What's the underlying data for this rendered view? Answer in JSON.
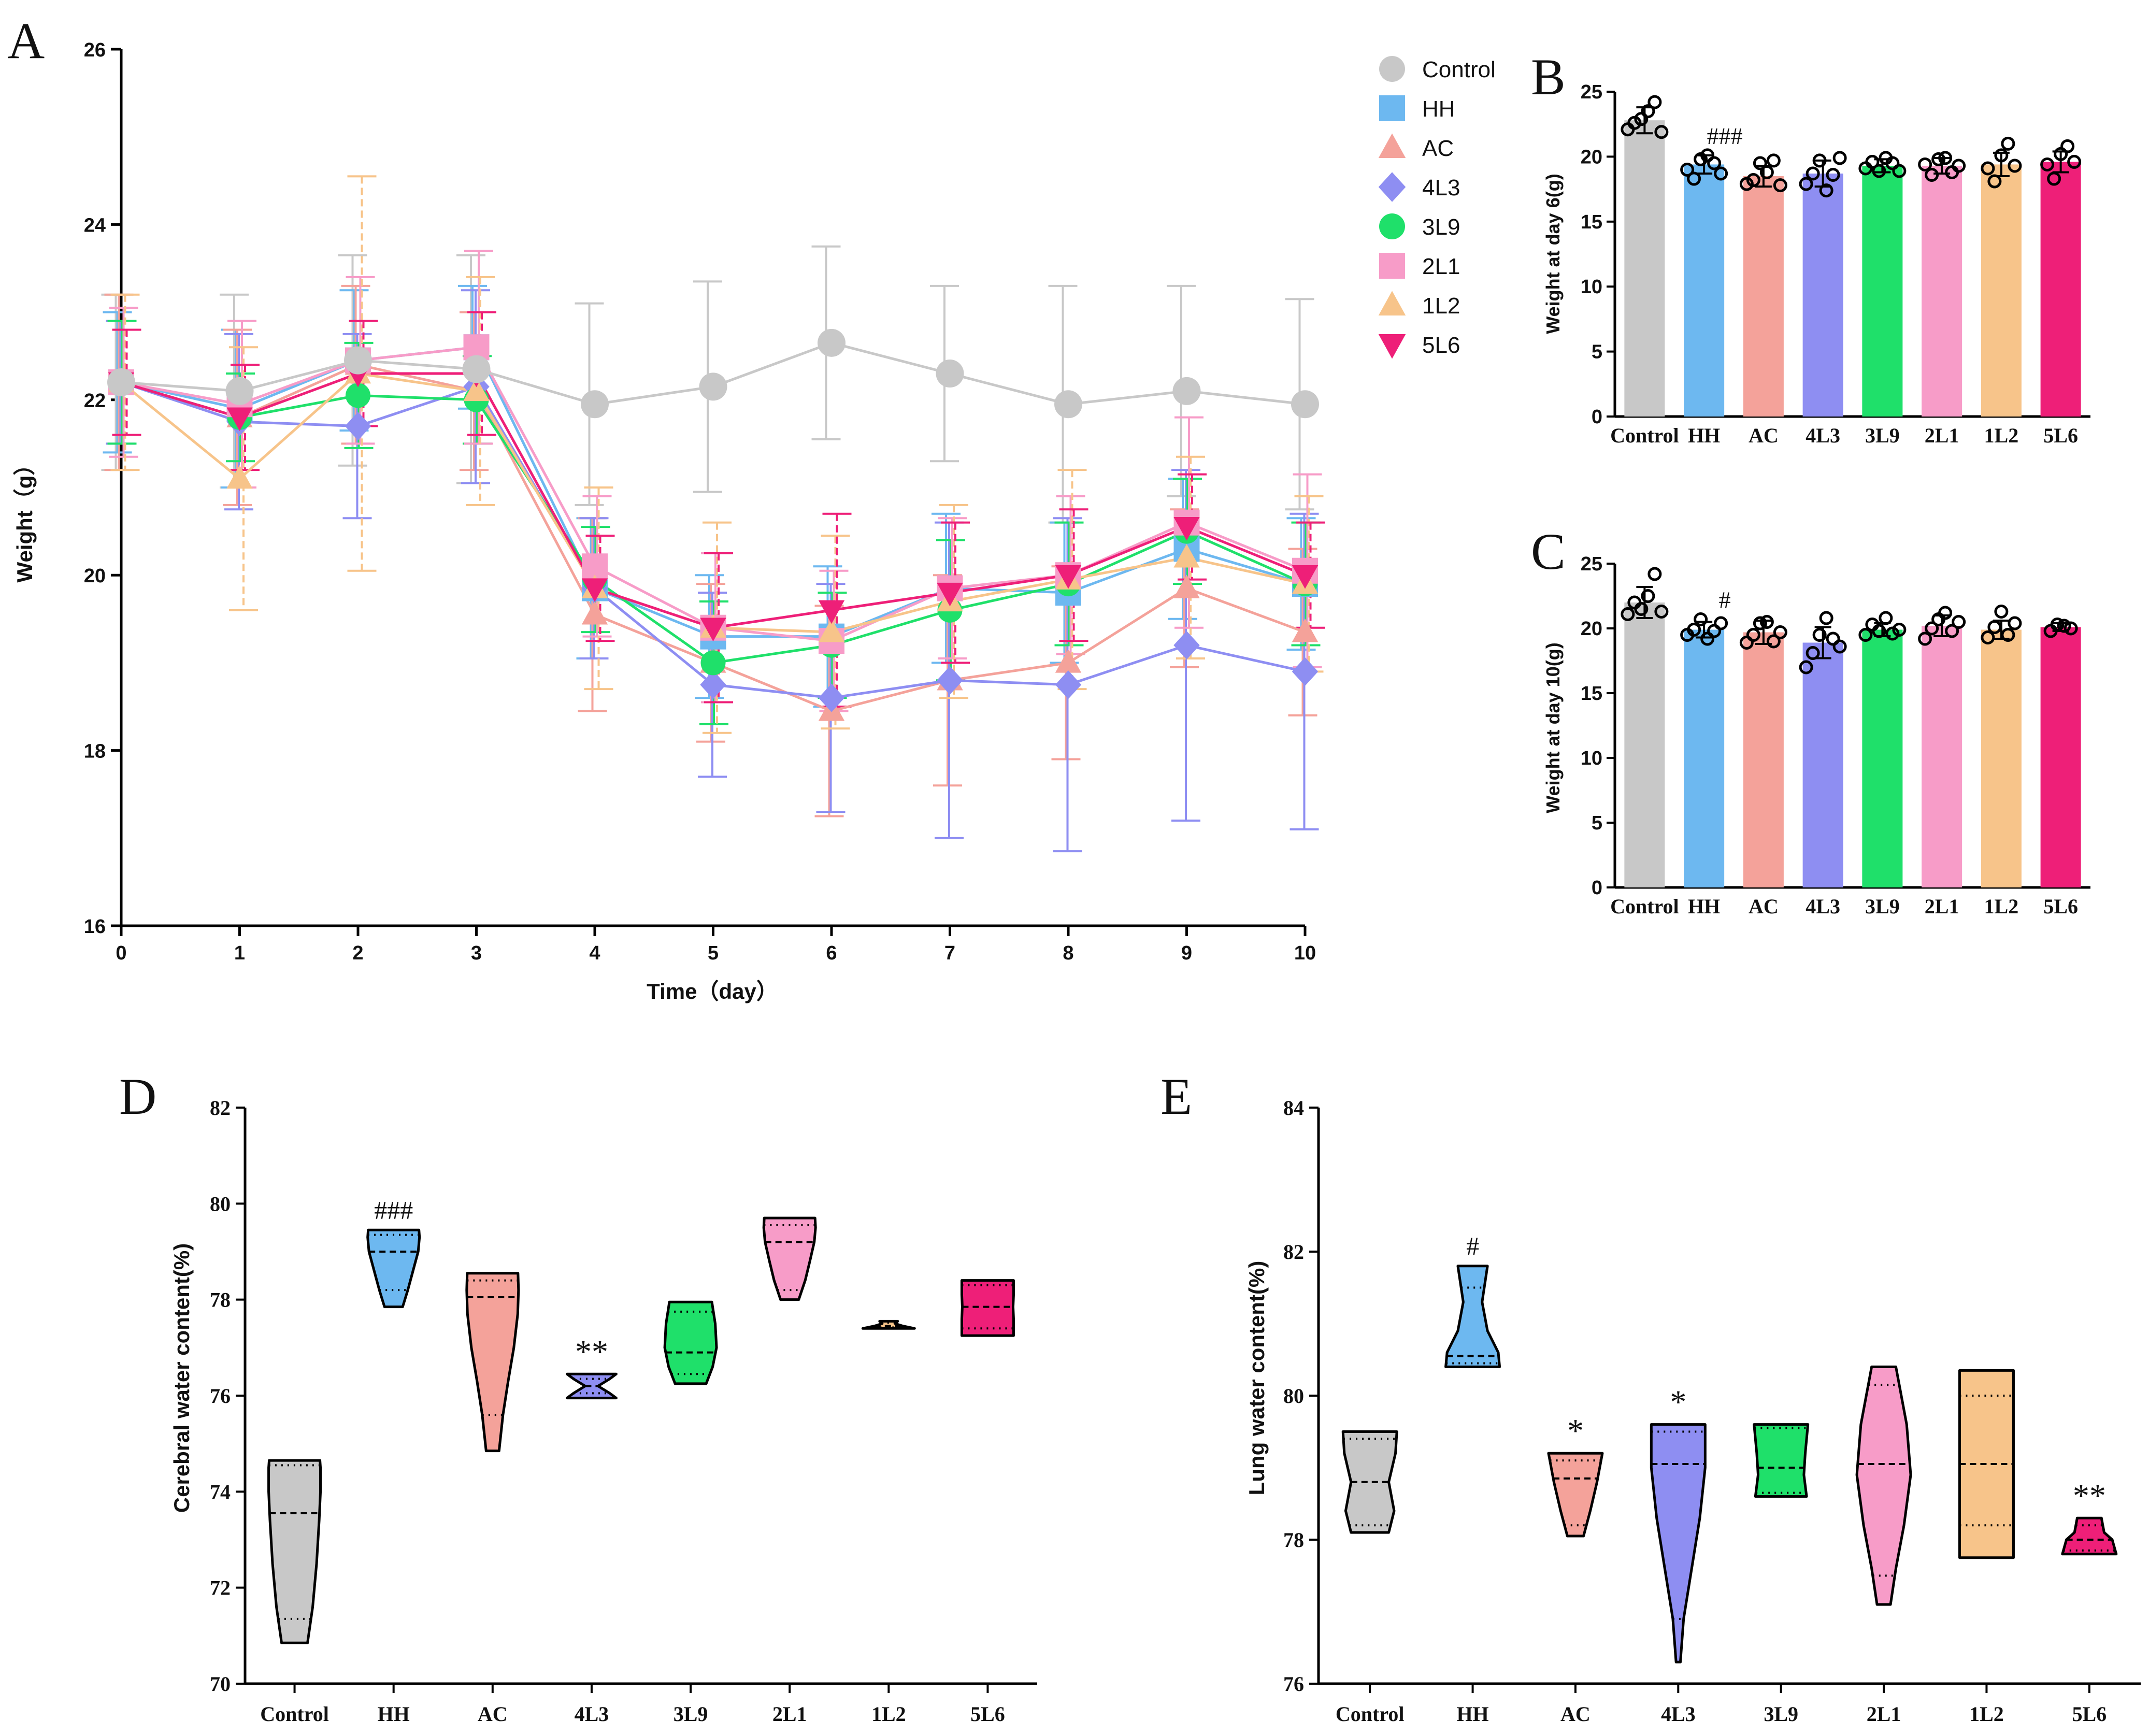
{
  "groups": [
    "Control",
    "HH",
    "AC",
    "4L3",
    "3L9",
    "2L1",
    "1L2",
    "5L6"
  ],
  "colors": {
    "Control": "#c8c8c8",
    "HH": "#6db8f0",
    "AC": "#f4a29a",
    "4L3": "#8e8ef2",
    "3L9": "#1fe06a",
    "2L1": "#f79cc8",
    "1L2": "#f7c48a",
    "5L6": "#ee1f78"
  },
  "panels": {
    "A": {
      "letter": "A"
    },
    "B": {
      "letter": "B"
    },
    "C": {
      "letter": "C"
    },
    "D": {
      "letter": "D"
    },
    "E": {
      "letter": "E"
    }
  },
  "chart_data": [
    {
      "id": "A",
      "type": "line",
      "xlabel": "Time（day）",
      "ylabel": "Weight（g）",
      "xlim": [
        0,
        10
      ],
      "ylim": [
        16,
        26
      ],
      "xticks": [
        "0",
        "1",
        "2",
        "3",
        "4",
        "5",
        "6",
        "7",
        "8",
        "9",
        "10"
      ],
      "yticks": [
        "16",
        "18",
        "20",
        "22",
        "24",
        "26"
      ],
      "x": [
        0,
        1,
        2,
        3,
        4,
        5,
        6,
        7,
        8,
        9,
        10
      ],
      "legend_position": "top-right",
      "series": [
        {
          "name": "Control",
          "marker": "circle",
          "values": [
            22.2,
            22.1,
            22.45,
            22.35,
            21.95,
            22.15,
            22.65,
            22.3,
            21.95,
            22.1,
            21.95
          ],
          "err": [
            1.0,
            1.1,
            1.2,
            1.3,
            1.15,
            1.2,
            1.1,
            1.0,
            1.35,
            1.2,
            1.2
          ]
        },
        {
          "name": "HH",
          "marker": "square",
          "values": [
            22.2,
            21.9,
            22.45,
            22.6,
            19.85,
            19.3,
            19.3,
            19.85,
            19.8,
            20.3,
            19.9
          ],
          "err": [
            0.8,
            0.9,
            0.8,
            0.7,
            0.8,
            0.7,
            0.8,
            0.85,
            0.8,
            0.8,
            0.75
          ]
        },
        {
          "name": "AC",
          "marker": "triangle",
          "values": [
            22.2,
            21.8,
            22.4,
            22.1,
            19.55,
            19.0,
            18.45,
            18.8,
            19.0,
            19.85,
            19.35
          ],
          "err": [
            1.0,
            1.0,
            0.9,
            0.9,
            1.1,
            0.9,
            1.2,
            1.2,
            1.1,
            0.9,
            0.95
          ]
        },
        {
          "name": "4L3",
          "marker": "diamond",
          "values": [
            22.2,
            21.75,
            21.7,
            22.15,
            19.85,
            18.75,
            18.6,
            18.8,
            18.75,
            19.2,
            18.9
          ],
          "err": [
            0.7,
            1.0,
            1.05,
            1.1,
            0.8,
            1.05,
            1.3,
            1.8,
            1.9,
            2.0,
            1.8
          ]
        },
        {
          "name": "3L9",
          "marker": "circle",
          "values": [
            22.2,
            21.8,
            22.05,
            22.0,
            19.95,
            19.0,
            19.2,
            19.6,
            19.9,
            20.5,
            19.9
          ],
          "err": [
            0.7,
            0.5,
            0.6,
            0.5,
            0.6,
            0.7,
            0.6,
            0.8,
            0.7,
            0.6,
            0.7
          ]
        },
        {
          "name": "2L1",
          "marker": "square",
          "values": [
            22.2,
            21.95,
            22.45,
            22.6,
            20.1,
            19.4,
            19.25,
            19.85,
            20.0,
            20.6,
            20.05
          ],
          "err": [
            0.85,
            0.95,
            0.95,
            1.1,
            0.8,
            0.85,
            0.8,
            0.8,
            0.9,
            1.2,
            1.1
          ]
        },
        {
          "name": "1L2",
          "marker": "triangle",
          "values": [
            22.2,
            21.1,
            22.3,
            22.1,
            19.85,
            19.4,
            19.35,
            19.7,
            19.95,
            20.2,
            19.9
          ],
          "err": [
            1.0,
            1.5,
            2.25,
            1.3,
            1.15,
            1.2,
            1.1,
            1.1,
            1.25,
            1.15,
            1.0
          ]
        },
        {
          "name": "5L6",
          "marker": "triangle-down",
          "values": [
            22.2,
            21.8,
            22.3,
            22.3,
            19.85,
            19.4,
            19.6,
            19.8,
            20.0,
            20.55,
            20.0
          ],
          "err": [
            0.6,
            0.6,
            0.6,
            0.7,
            0.6,
            0.85,
            1.1,
            0.8,
            0.75,
            0.6,
            0.6
          ]
        }
      ]
    },
    {
      "id": "B",
      "type": "bar",
      "ylabel": "Weight at day 6(g)",
      "ylim": [
        0,
        25
      ],
      "yticks": [
        "0",
        "5",
        "10",
        "15",
        "20",
        "25"
      ],
      "categories": [
        "Control",
        "HH",
        "AC",
        "4L3",
        "3L9",
        "2L1",
        "1L2",
        "5L6"
      ],
      "values": [
        22.8,
        19.4,
        18.5,
        18.7,
        19.3,
        19.3,
        19.4,
        19.6
      ],
      "err": [
        1.0,
        0.7,
        0.8,
        1.0,
        0.5,
        0.6,
        0.9,
        0.8
      ],
      "points": [
        [
          22.1,
          22.6,
          22.9,
          23.5,
          24.2,
          21.9
        ],
        [
          19.0,
          18.3,
          19.8,
          20.1,
          19.5,
          18.7
        ],
        [
          17.9,
          18.2,
          19.5,
          18.8,
          19.7,
          17.8
        ],
        [
          17.9,
          18.7,
          19.7,
          17.4,
          18.6,
          19.9
        ],
        [
          19.1,
          19.6,
          18.9,
          19.9,
          19.5,
          18.9
        ],
        [
          19.4,
          18.6,
          19.8,
          19.9,
          18.8,
          19.3
        ],
        [
          19.1,
          18.1,
          20.1,
          21.0,
          19.3
        ],
        [
          19.4,
          18.3,
          20.2,
          20.8,
          19.6
        ]
      ],
      "annotations": [
        {
          "category": "HH",
          "text": "###"
        }
      ]
    },
    {
      "id": "C",
      "type": "bar",
      "ylabel": "Weight at day 10(g)",
      "ylim": [
        0,
        25
      ],
      "yticks": [
        "0",
        "5",
        "10",
        "15",
        "20",
        "25"
      ],
      "categories": [
        "Control",
        "HH",
        "AC",
        "4L3",
        "3L9",
        "2L1",
        "1L2",
        "5L6"
      ],
      "values": [
        22.0,
        19.9,
        19.7,
        18.9,
        19.9,
        20.2,
        19.9,
        20.1
      ],
      "err": [
        1.2,
        0.6,
        0.9,
        1.2,
        0.5,
        0.8,
        0.7,
        0.3
      ],
      "points": [
        [
          21.1,
          22.0,
          21.5,
          22.5,
          24.2,
          21.3
        ],
        [
          19.5,
          19.9,
          20.7,
          19.2,
          19.8,
          20.4
        ],
        [
          18.9,
          19.5,
          20.4,
          20.5,
          19.0,
          19.7
        ],
        [
          17.0,
          18.1,
          19.5,
          20.8,
          19.2,
          18.6
        ],
        [
          19.5,
          20.3,
          19.8,
          20.8,
          19.6,
          19.9
        ],
        [
          19.2,
          20.0,
          20.7,
          21.2,
          19.8,
          20.5
        ],
        [
          19.3,
          20.1,
          21.3,
          19.5,
          20.4
        ],
        [
          19.8,
          20.3,
          20.2,
          20.0
        ]
      ],
      "annotations": [
        {
          "category": "HH",
          "text": "#"
        }
      ]
    },
    {
      "id": "D",
      "type": "violin",
      "ylabel": "Cerebral water content(%)",
      "ylim": [
        70,
        82
      ],
      "yticks": [
        "70",
        "72",
        "74",
        "76",
        "78",
        "80",
        "82"
      ],
      "categories": [
        "Control",
        "HH",
        "AC",
        "4L3",
        "3L9",
        "2L1",
        "1L2",
        "5L6"
      ],
      "violins": [
        {
          "min": 70.85,
          "max": 74.65,
          "median": 73.55,
          "q1": 71.35,
          "q3": 74.55,
          "profile": [
            [
              70.85,
              0.5
            ],
            [
              71.6,
              0.7
            ],
            [
              72.5,
              0.85
            ],
            [
              73.4,
              0.95
            ],
            [
              74.0,
              1.0
            ],
            [
              74.5,
              1.0
            ],
            [
              74.65,
              0.98
            ]
          ]
        },
        {
          "min": 77.85,
          "max": 79.45,
          "median": 79.0,
          "q1": 78.2,
          "q3": 79.35,
          "profile": [
            [
              77.85,
              0.35
            ],
            [
              78.2,
              0.55
            ],
            [
              78.6,
              0.75
            ],
            [
              79.0,
              0.95
            ],
            [
              79.3,
              1.0
            ],
            [
              79.45,
              0.98
            ]
          ]
        },
        {
          "min": 74.85,
          "max": 78.55,
          "median": 78.05,
          "q1": 75.6,
          "q3": 78.4,
          "profile": [
            [
              74.85,
              0.25
            ],
            [
              75.6,
              0.4
            ],
            [
              76.3,
              0.6
            ],
            [
              77.0,
              0.82
            ],
            [
              77.7,
              0.97
            ],
            [
              78.2,
              1.0
            ],
            [
              78.55,
              0.98
            ]
          ]
        },
        {
          "min": 75.95,
          "max": 76.45,
          "median": 76.2,
          "q1": 76.05,
          "q3": 76.35,
          "profile": [
            [
              75.95,
              0.95
            ],
            [
              76.05,
              0.7
            ],
            [
              76.2,
              0.25
            ],
            [
              76.35,
              0.7
            ],
            [
              76.45,
              0.95
            ]
          ]
        },
        {
          "min": 76.25,
          "max": 77.95,
          "median": 76.9,
          "q1": 76.45,
          "q3": 77.75,
          "profile": [
            [
              76.25,
              0.6
            ],
            [
              76.6,
              0.85
            ],
            [
              77.0,
              1.0
            ],
            [
              77.5,
              0.95
            ],
            [
              77.95,
              0.82
            ]
          ]
        },
        {
          "min": 78.0,
          "max": 79.7,
          "median": 79.2,
          "q1": 78.2,
          "q3": 79.55,
          "profile": [
            [
              78.0,
              0.35
            ],
            [
              78.4,
              0.6
            ],
            [
              78.8,
              0.78
            ],
            [
              79.2,
              0.95
            ],
            [
              79.5,
              1.0
            ],
            [
              79.7,
              0.98
            ]
          ]
        },
        {
          "min": 77.4,
          "max": 77.55,
          "median": 77.45,
          "q1": 77.42,
          "q3": 77.52,
          "profile": [
            [
              77.4,
              1.0
            ],
            [
              77.45,
              0.55
            ],
            [
              77.5,
              0.25
            ],
            [
              77.55,
              0.35
            ]
          ]
        },
        {
          "min": 77.25,
          "max": 78.4,
          "median": 77.85,
          "q1": 77.4,
          "q3": 78.3,
          "profile": [
            [
              77.25,
              1.0
            ],
            [
              77.6,
              1.0
            ],
            [
              77.85,
              0.98
            ],
            [
              78.1,
              1.0
            ],
            [
              78.4,
              1.0
            ]
          ]
        }
      ],
      "annotations": [
        {
          "category": "HH",
          "text": "###"
        },
        {
          "category": "4L3",
          "text": "**"
        }
      ]
    },
    {
      "id": "E",
      "type": "violin",
      "ylabel": "Lung water content(%)",
      "ylim": [
        76,
        84
      ],
      "yticks": [
        "76",
        "78",
        "80",
        "82",
        "84"
      ],
      "categories": [
        "Control",
        "HH",
        "AC",
        "4L3",
        "3L9",
        "2L1",
        "1L2",
        "5L6"
      ],
      "violins": [
        {
          "min": 78.1,
          "max": 79.5,
          "median": 78.8,
          "q1": 78.2,
          "q3": 79.4,
          "profile": [
            [
              78.1,
              0.7
            ],
            [
              78.4,
              0.9
            ],
            [
              78.8,
              0.7
            ],
            [
              79.2,
              0.95
            ],
            [
              79.5,
              1.0
            ]
          ]
        },
        {
          "min": 80.4,
          "max": 81.8,
          "median": 80.55,
          "q1": 80.45,
          "q3": 81.5,
          "profile": [
            [
              80.4,
              1.0
            ],
            [
              80.6,
              0.95
            ],
            [
              80.9,
              0.55
            ],
            [
              81.3,
              0.35
            ],
            [
              81.8,
              0.55
            ]
          ]
        },
        {
          "min": 78.05,
          "max": 79.2,
          "median": 78.85,
          "q1": 78.2,
          "q3": 79.1,
          "profile": [
            [
              78.05,
              0.3
            ],
            [
              78.4,
              0.55
            ],
            [
              78.8,
              0.8
            ],
            [
              79.2,
              1.0
            ]
          ]
        },
        {
          "min": 76.3,
          "max": 79.6,
          "median": 79.05,
          "q1": 76.9,
          "q3": 79.5,
          "profile": [
            [
              76.3,
              0.08
            ],
            [
              76.9,
              0.2
            ],
            [
              77.6,
              0.5
            ],
            [
              78.3,
              0.8
            ],
            [
              79.0,
              1.0
            ],
            [
              79.6,
              1.0
            ]
          ]
        },
        {
          "min": 78.6,
          "max": 79.6,
          "median": 79.0,
          "q1": 78.65,
          "q3": 79.55,
          "profile": [
            [
              78.6,
              0.95
            ],
            [
              78.9,
              0.85
            ],
            [
              79.2,
              0.9
            ],
            [
              79.6,
              1.0
            ]
          ]
        },
        {
          "min": 77.1,
          "max": 80.4,
          "median": 79.05,
          "q1": 77.5,
          "q3": 80.15,
          "profile": [
            [
              77.1,
              0.25
            ],
            [
              77.6,
              0.45
            ],
            [
              78.2,
              0.75
            ],
            [
              78.9,
              1.0
            ],
            [
              79.6,
              0.85
            ],
            [
              80.4,
              0.45
            ]
          ]
        },
        {
          "min": 77.75,
          "max": 80.35,
          "median": 79.05,
          "q1": 78.2,
          "q3": 80.0,
          "profile": [
            [
              77.75,
              1.0
            ],
            [
              78.5,
              1.0
            ],
            [
              79.0,
              1.0
            ],
            [
              79.8,
              1.0
            ],
            [
              80.35,
              1.0
            ]
          ]
        },
        {
          "min": 77.8,
          "max": 78.3,
          "median": 78.0,
          "q1": 77.85,
          "q3": 78.2,
          "profile": [
            [
              77.8,
              1.0
            ],
            [
              78.0,
              0.85
            ],
            [
              78.1,
              0.55
            ],
            [
              78.3,
              0.45
            ]
          ]
        }
      ],
      "annotations": [
        {
          "category": "HH",
          "text": "#"
        },
        {
          "category": "AC",
          "text": "*"
        },
        {
          "category": "4L3",
          "text": "*"
        },
        {
          "category": "5L6",
          "text": "**"
        }
      ]
    }
  ]
}
